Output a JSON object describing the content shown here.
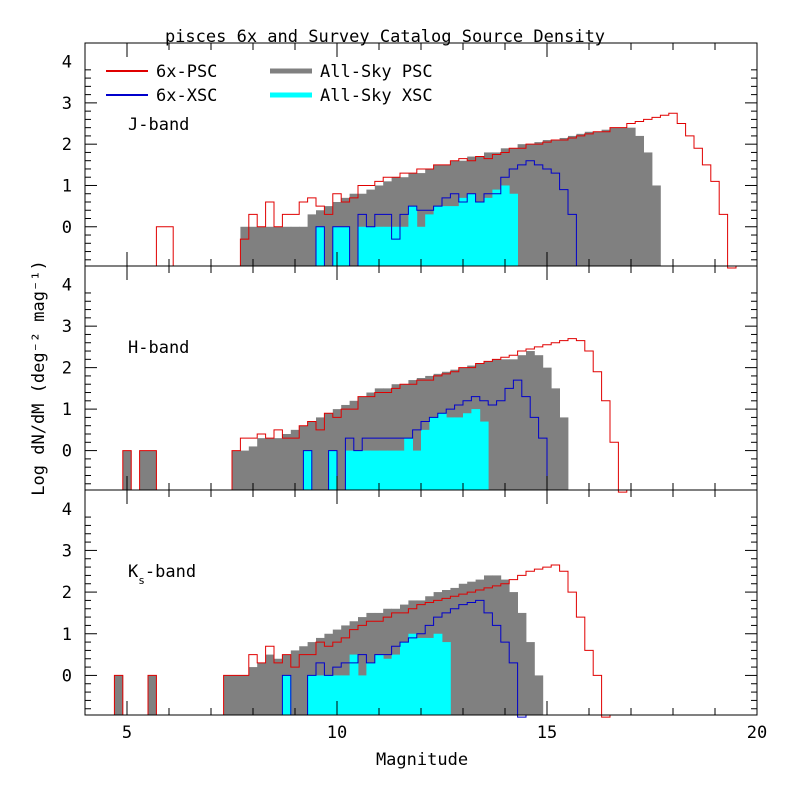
{
  "chart_data": {
    "type": "bar",
    "title": "pisces  6x and Survey Catalog Source Density",
    "xlabel": "Magnitude",
    "ylabel": "Log dN/dM (deg⁻² mag⁻¹)",
    "xlim": [
      4,
      20
    ],
    "ylim": [
      -0.95,
      4.45
    ],
    "x_ticks": [
      "5",
      "10",
      "15",
      "20"
    ],
    "y_ticks": [
      "0",
      "1",
      "2",
      "3",
      "4"
    ],
    "bin_width": 0.2,
    "colors": {
      "psc_6x": "#e00000",
      "xsc_6x": "#0000cc",
      "allsky_psc": "#808080",
      "allsky_xsc": "#00ffff"
    },
    "legend": {
      "psc_6x": "6x-PSC",
      "xsc_6x": "6x-XSC",
      "allsky_psc": "All-Sky PSC",
      "allsky_xsc": "All-Sky XSC"
    },
    "panels": [
      {
        "band": "J-band",
        "series": {
          "psc_6x": {
            "x_start": 5.7,
            "values": [
              0,
              0,
              null,
              null,
              null,
              null,
              null,
              null,
              null,
              null,
              -0.3,
              0.3,
              0.0,
              0.6,
              0.0,
              0.3,
              0.3,
              0.6,
              0.7,
              0.5,
              0.3,
              0.8,
              0.6,
              0.7,
              1.0,
              1.0,
              1.1,
              1.2,
              1.2,
              1.3,
              1.3,
              1.4,
              1.4,
              1.5,
              1.5,
              1.6,
              1.65,
              1.6,
              1.7,
              1.65,
              1.75,
              1.8,
              1.9,
              1.9,
              2.0,
              2.0,
              2.05,
              2.1,
              2.1,
              2.15,
              2.2,
              2.25,
              2.3,
              2.3,
              2.4,
              2.4,
              2.5,
              2.55,
              2.6,
              2.65,
              2.7,
              2.75,
              2.5,
              2.2,
              1.9,
              1.5,
              1.1,
              0.3,
              -1.0
            ]
          },
          "xsc_6x": {
            "x_start": 9.5,
            "values": [
              0,
              null,
              0,
              0,
              null,
              0.3,
              0,
              0.3,
              0.3,
              -0.3,
              0.3,
              0.5,
              0.4,
              0.4,
              0.5,
              0.7,
              0.8,
              0.6,
              0.8,
              0.6,
              0.8,
              0.8,
              1.2,
              1.4,
              1.5,
              1.6,
              1.5,
              1.4,
              1.3,
              0.9,
              0.3
            ]
          },
          "allsky_psc": {
            "x_start": 7.7,
            "values": [
              0,
              0,
              0,
              0,
              0,
              0,
              0,
              0,
              0.3,
              0.4,
              0.5,
              0.6,
              0.7,
              0.8,
              0.8,
              0.9,
              1.0,
              1.1,
              1.2,
              1.2,
              1.3,
              1.3,
              1.4,
              1.5,
              1.5,
              1.6,
              1.6,
              1.7,
              1.7,
              1.8,
              1.8,
              1.9,
              1.9,
              2.0,
              2.0,
              2.05,
              2.1,
              2.1,
              2.15,
              2.2,
              2.25,
              2.3,
              2.3,
              2.35,
              2.4,
              2.4,
              2.4,
              2.2,
              1.8,
              1.0
            ]
          },
          "allsky_xsc": {
            "x_start": 9.5,
            "values": [
              0,
              null,
              0,
              0,
              null,
              0,
              0,
              0,
              0,
              0,
              0,
              0.5,
              0,
              0.3,
              0.5,
              0.5,
              0.5,
              0.7,
              0.8,
              0.6,
              0.7,
              0.9,
              1.0,
              0.8
            ]
          }
        }
      },
      {
        "band": "H-band",
        "series": {
          "psc_6x": {
            "x_start": 4.9,
            "values": [
              0,
              null,
              0,
              0,
              null,
              null,
              null,
              null,
              null,
              null,
              null,
              null,
              null,
              0,
              0.3,
              0.3,
              0.4,
              0.3,
              0.5,
              0.3,
              0.3,
              0.6,
              0.7,
              0.5,
              0.9,
              0.8,
              1.0,
              1.0,
              1.3,
              1.3,
              1.4,
              1.4,
              1.5,
              1.6,
              1.6,
              1.7,
              1.7,
              1.8,
              1.85,
              1.9,
              2.0,
              2.0,
              2.1,
              2.15,
              2.2,
              2.25,
              2.3,
              2.4,
              2.45,
              2.5,
              2.55,
              2.6,
              2.65,
              2.7,
              2.65,
              2.4,
              1.9,
              1.2,
              0.2,
              -1.0
            ]
          },
          "xsc_6x": {
            "x_start": 9.2,
            "values": [
              0,
              null,
              null,
              0,
              null,
              0.3,
              0,
              0.3,
              0.3,
              0.3,
              0.3,
              0.3,
              0.3,
              0.5,
              0.7,
              0.8,
              0.9,
              1.0,
              1.1,
              1.2,
              1.3,
              1.2,
              1.1,
              1.2,
              1.5,
              1.7,
              1.3,
              0.8,
              0.3
            ]
          },
          "allsky_psc": {
            "x_start": 4.9,
            "values": [
              0,
              null,
              0,
              0,
              null,
              null,
              null,
              null,
              null,
              null,
              null,
              null,
              null,
              0,
              0,
              0.1,
              0.3,
              0.3,
              0.3,
              0.4,
              0.5,
              0.6,
              0.7,
              0.8,
              0.9,
              1.0,
              1.1,
              1.2,
              1.3,
              1.4,
              1.5,
              1.5,
              1.6,
              1.6,
              1.7,
              1.75,
              1.8,
              1.85,
              1.9,
              1.95,
              2.0,
              2.05,
              2.1,
              2.15,
              2.2,
              2.2,
              2.2,
              2.3,
              2.4,
              2.3,
              2.0,
              1.5,
              0.8
            ]
          },
          "allsky_xsc": {
            "x_start": 9.2,
            "values": [
              0,
              null,
              null,
              0,
              null,
              0,
              0,
              0,
              0,
              0,
              0,
              0,
              0.3,
              0,
              0.5,
              0.8,
              0.9,
              0.8,
              0.8,
              0.9,
              1.0,
              0.7
            ]
          }
        }
      },
      {
        "band": "Ks-band",
        "series": {
          "psc_6x": {
            "x_start": 4.7,
            "values": [
              0,
              null,
              null,
              null,
              0,
              null,
              null,
              null,
              null,
              null,
              null,
              null,
              null,
              0,
              0,
              0,
              0.5,
              0.3,
              0.7,
              0.3,
              0.5,
              0.2,
              0.5,
              0.5,
              0.8,
              0.7,
              0.8,
              0.9,
              1.1,
              1.2,
              1.3,
              1.3,
              1.4,
              1.5,
              1.5,
              1.6,
              1.7,
              1.75,
              1.8,
              1.85,
              1.9,
              1.95,
              2.0,
              2.05,
              2.1,
              2.15,
              2.2,
              2.3,
              2.4,
              2.5,
              2.55,
              2.6,
              2.65,
              2.5,
              2.0,
              1.4,
              0.6,
              0.0,
              -1.0
            ]
          },
          "xsc_6x": {
            "x_start": 8.7,
            "values": [
              0,
              null,
              null,
              0,
              0.3,
              0,
              0.2,
              0.3,
              0.3,
              0.5,
              0.3,
              0.5,
              0.5,
              0.7,
              0.8,
              0.9,
              1.0,
              1.2,
              1.4,
              1.5,
              1.6,
              1.7,
              1.75,
              1.8,
              1.5,
              1.2,
              0.8,
              0.3,
              -1.0
            ]
          },
          "allsky_psc": {
            "x_start": 4.7,
            "values": [
              0,
              null,
              null,
              null,
              0,
              null,
              null,
              null,
              null,
              null,
              null,
              null,
              null,
              0,
              0,
              0,
              0.2,
              0.3,
              0.5,
              0.4,
              0.5,
              0.6,
              0.7,
              0.8,
              0.9,
              1.0,
              1.1,
              1.2,
              1.3,
              1.4,
              1.5,
              1.5,
              1.6,
              1.6,
              1.7,
              1.8,
              1.8,
              1.9,
              2.0,
              2.05,
              2.1,
              2.2,
              2.25,
              2.3,
              2.4,
              2.4,
              2.3,
              2.0,
              1.5,
              0.8,
              0.0
            ]
          },
          "allsky_xsc": {
            "x_start": 8.7,
            "values": [
              0,
              null,
              null,
              0,
              0,
              0,
              0,
              0,
              0.5,
              0,
              0.3,
              0.5,
              0.4,
              0.5,
              0.8,
              1.0,
              0.9,
              0.9,
              1.0,
              0.8
            ]
          }
        }
      }
    ]
  }
}
